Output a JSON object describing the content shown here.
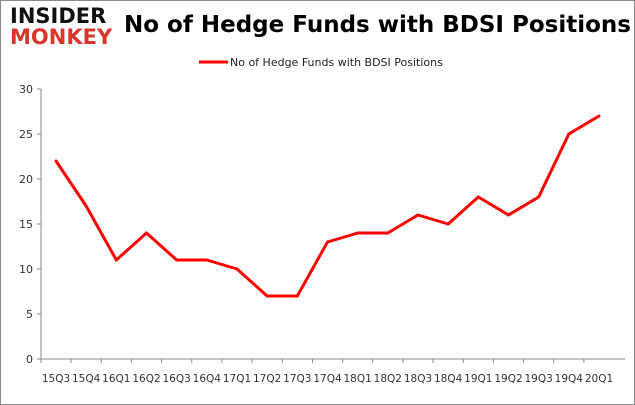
{
  "logo": {
    "line1": "INSIDER",
    "line2": "MONKEY"
  },
  "chart_data": {
    "type": "line",
    "title": "No of Hedge Funds with BDSI Positions",
    "categories": [
      "15Q3",
      "15Q4",
      "16Q1",
      "16Q2",
      "16Q3",
      "16Q4",
      "17Q1",
      "17Q2",
      "17Q3",
      "17Q4",
      "18Q1",
      "18Q2",
      "18Q3",
      "18Q4",
      "19Q1",
      "19Q2",
      "19Q3",
      "19Q4",
      "20Q1"
    ],
    "series": [
      {
        "name": "No of Hedge Funds with BDSI Positions",
        "values": [
          22,
          17,
          11,
          14,
          11,
          11,
          10,
          7,
          7,
          13,
          14,
          14,
          16,
          15,
          18,
          16,
          18,
          25,
          27
        ],
        "color": "#ff0000"
      }
    ],
    "ylim": [
      0,
      30
    ],
    "yticks": [
      0,
      5,
      10,
      15,
      20,
      25,
      30
    ],
    "grid": false,
    "legend": "top-center"
  }
}
